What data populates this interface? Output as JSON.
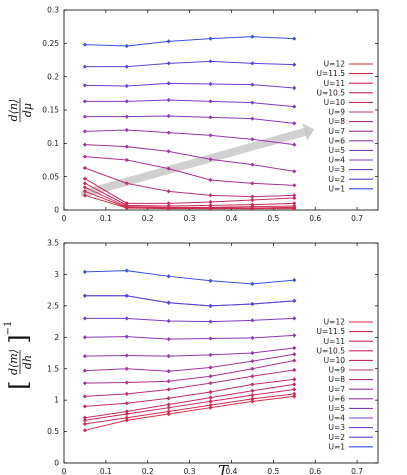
{
  "chart_data": [
    {
      "type": "line",
      "ylabel_num": "d⟨n⟩",
      "ylabel_den": "dμ",
      "xlabel": "",
      "xlim": [
        0,
        0.75
      ],
      "ylim": [
        0,
        0.3
      ],
      "xticks": [
        "0",
        "0.1",
        "0.2",
        "0.3",
        "0.4",
        "0.5",
        "0.6",
        "0.7"
      ],
      "yticks": [
        "0",
        "0.05",
        "0.1",
        "0.15",
        "0.2",
        "0.25",
        "0.3"
      ],
      "legend_position": "right",
      "annotation": "gray arrow from low-T, large-U curves toward high-T, small-U curves",
      "x": [
        0.05,
        0.15,
        0.25,
        0.35,
        0.45,
        0.55
      ],
      "series": [
        {
          "name": "U=12",
          "color": "#d42a45",
          "values": [
            0.022,
            0.003,
            0.002,
            0.002,
            0.002,
            0.002
          ]
        },
        {
          "name": "U=11.5",
          "color": "#cf2b4d",
          "values": [
            0.028,
            0.004,
            0.003,
            0.003,
            0.003,
            0.004
          ]
        },
        {
          "name": "U=11",
          "color": "#cb2c54",
          "values": [
            0.034,
            0.005,
            0.004,
            0.004,
            0.005,
            0.006
          ]
        },
        {
          "name": "U=10.5",
          "color": "#c62d5c",
          "values": [
            0.04,
            0.007,
            0.006,
            0.007,
            0.008,
            0.01
          ]
        },
        {
          "name": "U=10",
          "color": "#c12e64",
          "values": [
            0.047,
            0.01,
            0.01,
            0.012,
            0.015,
            0.018
          ]
        },
        {
          "name": "U=9",
          "color": "#b6307a",
          "values": [
            0.063,
            0.04,
            0.028,
            0.022,
            0.02,
            0.022
          ]
        },
        {
          "name": "U=8",
          "color": "#ab338e",
          "values": [
            0.08,
            0.075,
            0.062,
            0.045,
            0.04,
            0.037
          ]
        },
        {
          "name": "U=7",
          "color": "#a1359f",
          "values": [
            0.098,
            0.095,
            0.088,
            0.076,
            0.068,
            0.058
          ]
        },
        {
          "name": "U=6",
          "color": "#9637ad",
          "values": [
            0.118,
            0.12,
            0.116,
            0.112,
            0.106,
            0.098
          ]
        },
        {
          "name": "U=5",
          "color": "#8a3ab8",
          "values": [
            0.14,
            0.14,
            0.141,
            0.139,
            0.137,
            0.13
          ]
        },
        {
          "name": "U=4",
          "color": "#7d3dc2",
          "values": [
            0.163,
            0.163,
            0.165,
            0.163,
            0.161,
            0.155
          ]
        },
        {
          "name": "U=3",
          "color": "#6f40cc",
          "values": [
            0.187,
            0.186,
            0.19,
            0.189,
            0.188,
            0.183
          ]
        },
        {
          "name": "U=2",
          "color": "#5c44d6",
          "values": [
            0.215,
            0.215,
            0.22,
            0.223,
            0.22,
            0.218
          ]
        },
        {
          "name": "U=1",
          "color": "#3b4fe0",
          "values": [
            0.248,
            0.246,
            0.253,
            0.257,
            0.26,
            0.257
          ]
        }
      ]
    },
    {
      "type": "line",
      "ylabel_num": "d⟨m⟩",
      "ylabel_den": "dh",
      "ylabel_exp": "−1",
      "xlabel": "T",
      "xlim": [
        0,
        0.75
      ],
      "ylim": [
        0,
        3.5
      ],
      "xticks": [
        "0",
        "0.1",
        "0.2",
        "0.3",
        "0.4",
        "0.5",
        "0.6",
        "0.7"
      ],
      "yticks": [
        "0",
        "0.5",
        "1",
        "1.5",
        "2",
        "2.5",
        "3",
        "3.5"
      ],
      "legend_position": "right",
      "x": [
        0.05,
        0.15,
        0.25,
        0.35,
        0.45,
        0.55
      ],
      "series": [
        {
          "name": "U=12",
          "color": "#d42a45",
          "values": [
            0.52,
            0.68,
            0.78,
            0.88,
            0.98,
            1.06
          ]
        },
        {
          "name": "U=11.5",
          "color": "#cf2b4d",
          "values": [
            0.62,
            0.72,
            0.82,
            0.92,
            1.02,
            1.1
          ]
        },
        {
          "name": "U=11",
          "color": "#cb2c54",
          "values": [
            0.68,
            0.78,
            0.88,
            0.98,
            1.08,
            1.17
          ]
        },
        {
          "name": "U=10.5",
          "color": "#c62d5c",
          "values": [
            0.72,
            0.82,
            0.93,
            1.04,
            1.15,
            1.25
          ]
        },
        {
          "name": "U=10",
          "color": "#c12e64",
          "values": [
            0.9,
            0.95,
            1.03,
            1.13,
            1.25,
            1.33
          ]
        },
        {
          "name": "U=9",
          "color": "#b6307a",
          "values": [
            1.06,
            1.1,
            1.17,
            1.27,
            1.38,
            1.48
          ]
        },
        {
          "name": "U=8",
          "color": "#ab338e",
          "values": [
            1.27,
            1.28,
            1.3,
            1.38,
            1.5,
            1.63
          ]
        },
        {
          "name": "U=7",
          "color": "#a1359f",
          "values": [
            1.47,
            1.5,
            1.46,
            1.52,
            1.62,
            1.73
          ]
        },
        {
          "name": "U=6",
          "color": "#9637ad",
          "values": [
            1.7,
            1.71,
            1.7,
            1.72,
            1.75,
            1.83
          ]
        },
        {
          "name": "U=5",
          "color": "#8a3ab8",
          "values": [
            2.0,
            2.01,
            1.97,
            1.98,
            1.99,
            2.03
          ]
        },
        {
          "name": "U=4",
          "color": "#7d3dc2",
          "values": [
            2.3,
            2.3,
            2.26,
            2.25,
            2.27,
            2.3
          ]
        },
        {
          "name": "U=3",
          "color": "#6f40cc",
          "values": [
            2.66,
            2.66,
            2.55,
            2.5,
            2.53,
            2.58
          ]
        },
        {
          "name": "U=2",
          "color": "#5c44d6",
          "values": [
            2.66,
            2.66,
            2.55,
            2.5,
            2.53,
            2.58
          ]
        },
        {
          "name": "U=1",
          "color": "#3b4fe0",
          "values": [
            3.04,
            3.06,
            2.97,
            2.9,
            2.85,
            2.91
          ]
        }
      ]
    }
  ]
}
